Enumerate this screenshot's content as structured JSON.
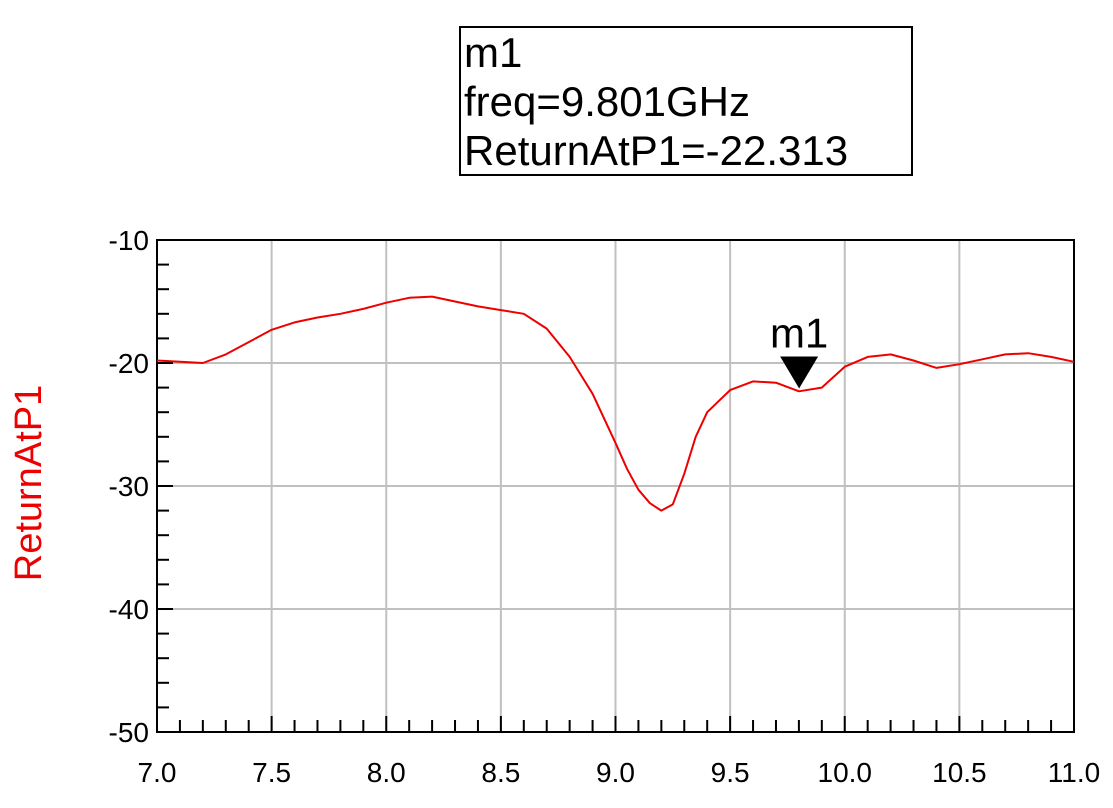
{
  "marker": {
    "name": "m1",
    "freq_text": "freq=9.801GHz",
    "value_text": "ReturnAtP1=-22.313"
  },
  "colors": {
    "trace": "#ee0000",
    "grid": "#c0c0c0",
    "axis": "#000000"
  },
  "chart_data": {
    "type": "line",
    "title": "",
    "xlabel": "",
    "ylabel": "ReturnAtP1",
    "xlim": [
      7.0,
      11.0
    ],
    "ylim": [
      -50,
      -10
    ],
    "xticks": [
      "7.0",
      "7.5",
      "8.0",
      "8.5",
      "9.0",
      "9.5",
      "10.0",
      "10.5",
      "11.0"
    ],
    "yticks": [
      "-10",
      "-20",
      "-30",
      "-40",
      "-50"
    ],
    "grid": true,
    "series": [
      {
        "name": "ReturnAtP1",
        "x": [
          7.0,
          7.1,
          7.2,
          7.3,
          7.4,
          7.5,
          7.6,
          7.7,
          7.8,
          7.9,
          8.0,
          8.1,
          8.2,
          8.3,
          8.4,
          8.5,
          8.6,
          8.7,
          8.8,
          8.9,
          9.0,
          9.05,
          9.1,
          9.15,
          9.2,
          9.25,
          9.3,
          9.35,
          9.4,
          9.5,
          9.6,
          9.7,
          9.8,
          9.9,
          10.0,
          10.1,
          10.2,
          10.3,
          10.4,
          10.5,
          10.6,
          10.7,
          10.8,
          10.9,
          11.0
        ],
        "y": [
          -19.8,
          -19.9,
          -20.0,
          -19.3,
          -18.3,
          -17.3,
          -16.7,
          -16.3,
          -16.0,
          -15.6,
          -15.1,
          -14.7,
          -14.6,
          -15.0,
          -15.4,
          -15.7,
          -16.0,
          -17.2,
          -19.5,
          -22.5,
          -26.5,
          -28.6,
          -30.3,
          -31.4,
          -32.0,
          -31.5,
          -29.0,
          -26.0,
          -24.0,
          -22.2,
          -21.5,
          -21.6,
          -22.3,
          -22.0,
          -20.3,
          -19.5,
          -19.3,
          -19.8,
          -20.4,
          -20.1,
          -19.7,
          -19.3,
          -19.2,
          -19.5,
          -19.9
        ]
      }
    ],
    "markers": [
      {
        "name": "m1",
        "x": 9.801,
        "y": -22.313
      }
    ]
  }
}
